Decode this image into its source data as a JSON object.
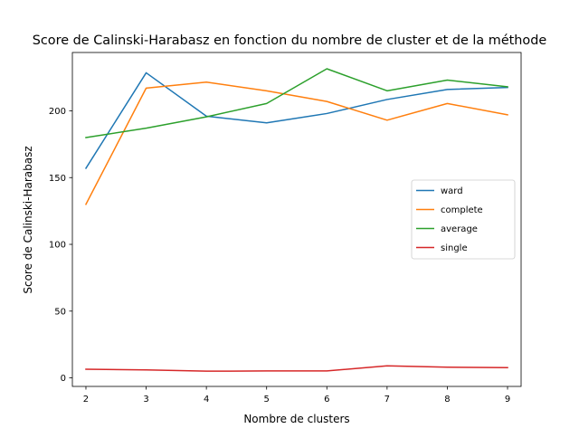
{
  "chart_data": {
    "type": "line",
    "title": "Score de Calinski-Harabasz en fonction du nombre de cluster et de la méthode",
    "xlabel": "Nombre de clusters",
    "ylabel": "Score de Calinski-Harabasz",
    "x": [
      2,
      3,
      4,
      5,
      6,
      7,
      8,
      9
    ],
    "xticks": [
      "2",
      "3",
      "4",
      "5",
      "6",
      "7",
      "8",
      "9"
    ],
    "yticks": [
      "0",
      "50",
      "100",
      "150",
      "200"
    ],
    "xlim": [
      1.775,
      9.225
    ],
    "ylim": [
      -6.4,
      243.7
    ],
    "grid": false,
    "legend_position": "center-right",
    "series": [
      {
        "name": "ward",
        "color": "#1f77b4",
        "values": [
          157,
          228.5,
          196,
          191,
          198,
          208.5,
          216,
          217.5
        ]
      },
      {
        "name": "complete",
        "color": "#ff7f0e",
        "values": [
          130,
          217,
          221.5,
          215,
          207,
          193,
          205.5,
          197
        ]
      },
      {
        "name": "average",
        "color": "#2ca02c",
        "values": [
          180,
          187,
          195.5,
          205.5,
          231.5,
          215,
          223,
          218
        ]
      },
      {
        "name": "single",
        "color": "#d62728",
        "values": [
          6.5,
          6,
          5,
          5.2,
          5.2,
          9,
          8,
          7.7
        ]
      }
    ]
  }
}
